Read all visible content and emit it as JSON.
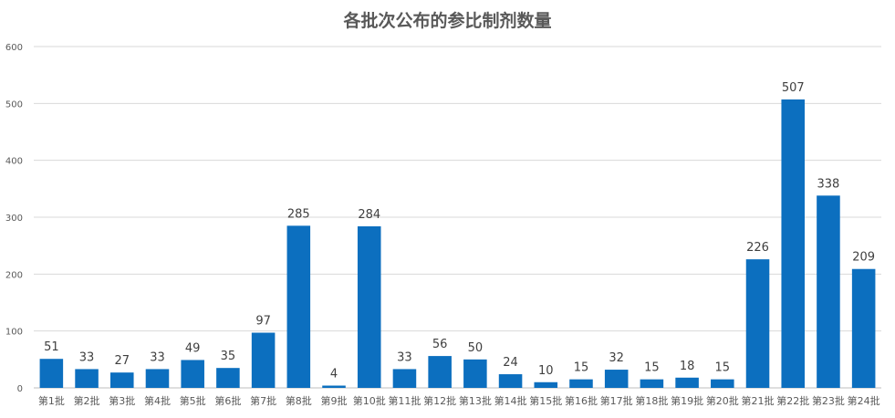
{
  "chart_data": {
    "type": "bar",
    "title": "各批次公布的参比制剂数量",
    "xlabel": "",
    "ylabel": "",
    "ylim": [
      0,
      600
    ],
    "yticks": [
      0,
      100,
      200,
      300,
      400,
      500,
      600
    ],
    "grid": true,
    "legend": "none",
    "categories": [
      "第1批",
      "第2批",
      "第3批",
      "第4批",
      "第5批",
      "第6批",
      "第7批",
      "第8批",
      "第9批",
      "第10批",
      "第11批",
      "第12批",
      "第13批",
      "第14批",
      "第15批",
      "第16批",
      "第17批",
      "第18批",
      "第19批",
      "第20批",
      "第21批",
      "第22批",
      "第23批",
      "第24批"
    ],
    "values": [
      51,
      33,
      27,
      33,
      49,
      35,
      97,
      285,
      4,
      284,
      33,
      56,
      50,
      24,
      10,
      15,
      32,
      15,
      18,
      15,
      226,
      507,
      338,
      209
    ],
    "colors": {
      "bar": "#0c6fbf",
      "grid": "#d9d9d9",
      "axis": "#bfbfbf",
      "tick_text": "#595959",
      "label_text": "#404040"
    }
  }
}
